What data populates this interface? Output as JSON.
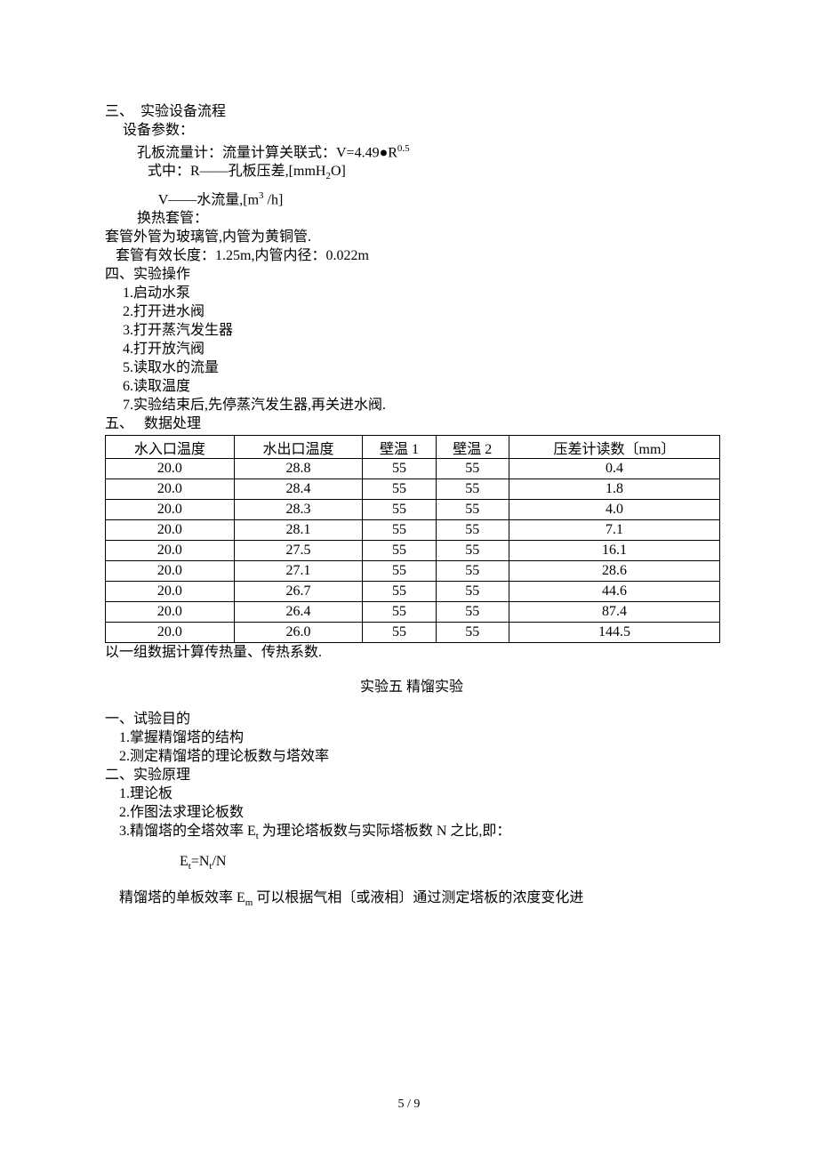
{
  "section3": {
    "heading": "三、  实验设备流程",
    "lines": [
      "     设备参数：",
      "         孔板流量计：流量计算关联式：V=4.49●R",
      "            式中：R——孔板压差,[mmH",
      "               V——水流量,[m",
      "         换热套管：",
      "套管外管为玻璃管,内管为黄铜管.",
      "   套管有效长度：1.25m,内管内径：0.022m"
    ],
    "sup1": "0.5",
    "sub1": "2",
    "sub1_after": "O]",
    "sup2": "3",
    "sup2_after": " /h]"
  },
  "section4": {
    "heading": "四、实验操作",
    "items": [
      "     1.启动水泵",
      "     2.打开进水阀",
      "     3.打开蒸汽发生器",
      "     4.打开放汽阀",
      "     5.读取水的流量",
      "     6.读取温度",
      "     7.实验结束后,先停蒸汽发生器,再关进水阀."
    ]
  },
  "section5": {
    "heading": "五、   数据处理",
    "table": {
      "headers": [
        "水入口温度",
        "水出口温度",
        "壁温 1",
        "壁温 2",
        "压差计读数〔mm〕"
      ],
      "rows": [
        [
          "20.0",
          "28.8",
          "55",
          "55",
          "0.4"
        ],
        [
          "20.0",
          "28.4",
          "55",
          "55",
          "1.8"
        ],
        [
          "20.0",
          "28.3",
          "55",
          "55",
          "4.0"
        ],
        [
          "20.0",
          "28.1",
          "55",
          "55",
          "7.1"
        ],
        [
          "20.0",
          "27.5",
          "55",
          "55",
          "16.1"
        ],
        [
          "20.0",
          "27.1",
          "55",
          "55",
          "28.6"
        ],
        [
          "20.0",
          "26.7",
          "55",
          "55",
          "44.6"
        ],
        [
          "20.0",
          "26.4",
          "55",
          "55",
          "87.4"
        ],
        [
          "20.0",
          "26.0",
          "55",
          "55",
          "144.5"
        ]
      ]
    },
    "footnote": "以一组数据计算传热量、传热系数."
  },
  "experiment5": {
    "title": "实验五   精馏实验",
    "s1_heading": "一、试验目的",
    "s1_items": [
      "    1.掌握精馏塔的结构",
      "    2.测定精馏塔的理论板数与塔效率"
    ],
    "s2_heading": "二、实验原理",
    "s2_items": [
      "    1.理论板",
      "    2.作图法求理论板数",
      "    3.精馏塔的全塔效率 E",
      "                     E",
      "    精馏塔的单板效率 E"
    ],
    "s2_sub_t": "t",
    "s2_item3_after": " 为理论塔板数与实际塔板数 N 之比,即：",
    "s2_formula_after": "/N",
    "s2_formula_mid": "=N",
    "s2_sub_m": "m",
    "s2_item5_after": " 可以根据气相〔或液相〕通过测定塔板的浓度变化进"
  },
  "pagenum": "5 / 9"
}
